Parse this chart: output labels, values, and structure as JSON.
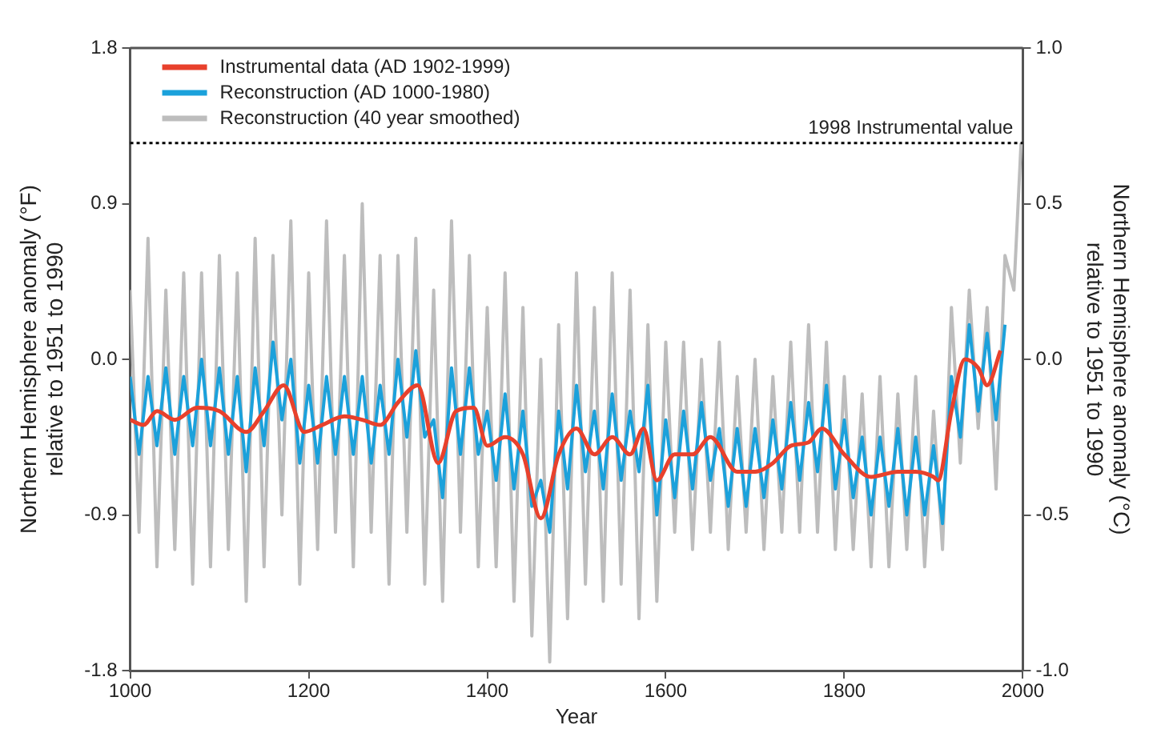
{
  "chart_data": {
    "type": "line",
    "xlabel": "Year",
    "ylabel": "Northern Hemisphere anomaly (°F)\nrelative to 1951 to 1990",
    "y2label": "Northern Hemisphere anomaly (°C)\nrelative to 1951 to 1990",
    "xlim": [
      1000,
      2000
    ],
    "xticks": [
      1000,
      1200,
      1400,
      1600,
      1800,
      2000
    ],
    "ylim": [
      -1.8,
      1.8
    ],
    "yticks": [
      {
        "value": -1.8,
        "label": "-1.8"
      },
      {
        "value": -0.9,
        "label": "-0.9"
      },
      {
        "value": 0,
        "label": "0.0"
      },
      {
        "value": 0.9,
        "label": "0.9"
      },
      {
        "value": 1.8,
        "label": "1.8"
      }
    ],
    "y2lim": [
      -1,
      1
    ],
    "y2ticks": [
      {
        "value": -1,
        "label": "-1.0"
      },
      -0.5,
      {
        "value": 0,
        "label": "0.0"
      },
      0.5,
      {
        "value": 1,
        "label": "1.0"
      }
    ],
    "grid": false,
    "legend": "top left",
    "marker": "none",
    "line_style": "solid",
    "ref_lines": [
      {
        "axis": "y",
        "value": 1.25,
        "label": "1998 Instrumental value",
        "color": "#000000",
        "line_style": "dotted"
      }
    ],
    "series": [
      {
        "name": "Instrumental data (AD 1902-1999)",
        "color": "#e8412c",
        "x": [
          1000,
          1015,
          1030,
          1050,
          1075,
          1100,
          1130,
          1150,
          1172,
          1195,
          1215,
          1240,
          1260,
          1280,
          1300,
          1322,
          1345,
          1365,
          1385,
          1400,
          1420,
          1440,
          1460,
          1480,
          1500,
          1520,
          1540,
          1560,
          1575,
          1590,
          1610,
          1630,
          1650,
          1680,
          1700,
          1720,
          1740,
          1760,
          1775,
          1800,
          1830,
          1860,
          1880,
          1900,
          1905,
          1920,
          1935,
          1950,
          1960,
          1975
        ],
        "values": [
          -0.35,
          -0.38,
          -0.3,
          -0.35,
          -0.28,
          -0.3,
          -0.42,
          -0.3,
          -0.15,
          -0.42,
          -0.38,
          -0.33,
          -0.35,
          -0.38,
          -0.25,
          -0.15,
          -0.6,
          -0.3,
          -0.28,
          -0.5,
          -0.45,
          -0.55,
          -0.92,
          -0.55,
          -0.4,
          -0.55,
          -0.45,
          -0.55,
          -0.4,
          -0.7,
          -0.55,
          -0.55,
          -0.45,
          -0.65,
          -0.65,
          -0.6,
          -0.5,
          -0.48,
          -0.4,
          -0.55,
          -0.68,
          -0.65,
          -0.65,
          -0.68,
          -0.7,
          -0.3,
          0.0,
          -0.05,
          -0.15,
          0.05
        ]
      },
      {
        "name": "Reconstruction (AD 1000-1980)",
        "color": "#1ba1db",
        "x": [
          1000,
          1010,
          1020,
          1030,
          1040,
          1050,
          1060,
          1070,
          1080,
          1090,
          1100,
          1110,
          1120,
          1130,
          1140,
          1150,
          1160,
          1170,
          1180,
          1190,
          1200,
          1210,
          1220,
          1230,
          1240,
          1250,
          1260,
          1270,
          1280,
          1290,
          1300,
          1310,
          1320,
          1330,
          1340,
          1350,
          1360,
          1370,
          1380,
          1390,
          1400,
          1410,
          1420,
          1430,
          1440,
          1450,
          1460,
          1470,
          1480,
          1490,
          1500,
          1510,
          1520,
          1530,
          1540,
          1550,
          1560,
          1570,
          1580,
          1590,
          1600,
          1610,
          1620,
          1630,
          1640,
          1650,
          1660,
          1670,
          1680,
          1690,
          1700,
          1710,
          1720,
          1730,
          1740,
          1750,
          1760,
          1770,
          1780,
          1790,
          1800,
          1810,
          1820,
          1830,
          1840,
          1850,
          1860,
          1870,
          1880,
          1890,
          1900,
          1910,
          1920,
          1930,
          1940,
          1950,
          1960,
          1970,
          1980
        ],
        "values": [
          -0.1,
          -0.55,
          -0.1,
          -0.5,
          -0.05,
          -0.55,
          -0.1,
          -0.5,
          0.0,
          -0.5,
          -0.05,
          -0.55,
          -0.1,
          -0.65,
          -0.05,
          -0.5,
          0.1,
          -0.35,
          0.0,
          -0.6,
          -0.15,
          -0.6,
          -0.1,
          -0.55,
          -0.1,
          -0.55,
          -0.1,
          -0.6,
          -0.15,
          -0.55,
          0.0,
          -0.45,
          0.05,
          -0.45,
          -0.35,
          -0.8,
          -0.05,
          -0.55,
          -0.05,
          -0.55,
          -0.3,
          -0.7,
          -0.2,
          -0.75,
          -0.3,
          -0.85,
          -0.7,
          -1.0,
          -0.3,
          -0.75,
          -0.15,
          -0.65,
          -0.3,
          -0.75,
          -0.2,
          -0.7,
          -0.3,
          -0.65,
          -0.15,
          -0.9,
          -0.35,
          -0.8,
          -0.3,
          -0.75,
          -0.25,
          -0.7,
          -0.4,
          -0.85,
          -0.4,
          -0.85,
          -0.4,
          -0.8,
          -0.35,
          -0.75,
          -0.25,
          -0.7,
          -0.25,
          -0.65,
          -0.15,
          -0.75,
          -0.35,
          -0.8,
          -0.45,
          -0.9,
          -0.45,
          -0.85,
          -0.4,
          -0.9,
          -0.45,
          -0.9,
          -0.5,
          -0.95,
          -0.1,
          -0.45,
          0.2,
          -0.3,
          0.15,
          -0.35,
          0.2
        ]
      },
      {
        "name": "Reconstruction (40 year smoothed)",
        "color": "#bdbdbd",
        "x": [
          1000,
          1010,
          1020,
          1030,
          1040,
          1050,
          1060,
          1070,
          1080,
          1090,
          1100,
          1110,
          1120,
          1130,
          1140,
          1150,
          1160,
          1170,
          1180,
          1190,
          1200,
          1210,
          1220,
          1230,
          1240,
          1250,
          1260,
          1270,
          1280,
          1290,
          1300,
          1310,
          1320,
          1330,
          1340,
          1350,
          1360,
          1370,
          1380,
          1390,
          1400,
          1410,
          1420,
          1430,
          1440,
          1450,
          1460,
          1470,
          1480,
          1490,
          1500,
          1510,
          1520,
          1530,
          1540,
          1550,
          1560,
          1570,
          1580,
          1590,
          1600,
          1610,
          1620,
          1630,
          1640,
          1650,
          1660,
          1670,
          1680,
          1690,
          1700,
          1710,
          1720,
          1730,
          1740,
          1750,
          1760,
          1770,
          1780,
          1790,
          1800,
          1810,
          1820,
          1830,
          1840,
          1850,
          1860,
          1870,
          1880,
          1890,
          1900,
          1910,
          1920,
          1930,
          1940,
          1950,
          1960,
          1970,
          1980,
          1990,
          1998
        ],
        "values": [
          0.4,
          -1.0,
          0.7,
          -1.2,
          0.4,
          -1.1,
          0.5,
          -1.3,
          0.5,
          -1.2,
          0.6,
          -1.1,
          0.5,
          -1.4,
          0.7,
          -1.2,
          0.6,
          -0.9,
          0.8,
          -1.3,
          0.5,
          -1.1,
          0.8,
          -1.0,
          0.6,
          -1.2,
          0.9,
          -1.0,
          0.6,
          -1.3,
          0.6,
          -1.0,
          0.7,
          -1.3,
          0.4,
          -1.4,
          0.8,
          -1.0,
          0.6,
          -1.2,
          0.3,
          -1.2,
          0.5,
          -1.4,
          0.3,
          -1.6,
          0.0,
          -1.75,
          0.2,
          -1.5,
          0.5,
          -1.3,
          0.3,
          -1.4,
          0.5,
          -1.3,
          0.4,
          -1.5,
          0.2,
          -1.4,
          0.1,
          -1.0,
          0.1,
          -1.1,
          0.0,
          -1.0,
          0.1,
          -1.1,
          -0.1,
          -1.0,
          0.0,
          -1.1,
          -0.1,
          -1.0,
          0.1,
          -1.0,
          0.2,
          -1.0,
          0.1,
          -1.1,
          -0.1,
          -1.1,
          -0.2,
          -1.2,
          -0.1,
          -1.2,
          -0.2,
          -1.1,
          -0.1,
          -1.2,
          -0.3,
          -1.1,
          0.3,
          -0.6,
          0.4,
          -0.4,
          0.3,
          -0.75,
          0.6,
          0.4,
          1.25
        ]
      }
    ]
  }
}
